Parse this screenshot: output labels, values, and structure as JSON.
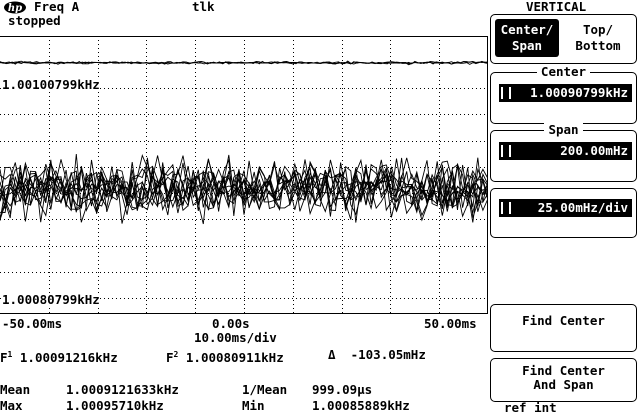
{
  "header": {
    "logo": "hp",
    "measurement": "Freq A",
    "status": "stopped",
    "remote": "tlk"
  },
  "screen": {
    "top_label": "1.00100799kHz",
    "bottom_label": "1.00080799kHz",
    "x_left": "-50.00ms",
    "x_center": "0.00s",
    "x_right": "50.00ms",
    "time_per_div": "10.00ms/div"
  },
  "markers": {
    "f1_label": "F",
    "f1_sub": "1",
    "f1_value": "1.00091216kHz",
    "f2_label": "F",
    "f2_sub": "2",
    "f2_value": "1.00080911kHz",
    "delta_symbol": "Δ",
    "delta_value": "-103.05mHz"
  },
  "stats": {
    "mean_label": "Mean",
    "mean_value": "1.0009121633kHz",
    "inv_mean_label": "1/Mean",
    "inv_mean_value": "999.09µs",
    "max_label": "Max",
    "max_value": "1.00095710kHz",
    "min_label": "Min",
    "min_value": "1.00085889kHz"
  },
  "menu": {
    "title": "VERTICAL",
    "center_span_line1": "Center/",
    "center_span_line2": "Span",
    "top_bottom_line1": "Top/",
    "top_bottom_line2": "Bottom",
    "center_title": "Center",
    "center_value": "1.00090799kHz",
    "span_title": "Span",
    "span_value": "200.00mHz",
    "scale_value": "25.00mHz/div",
    "find_center": "Find Center",
    "find_center_span_line1": "Find Center",
    "find_center_span_line2": "And Span",
    "ref": "ref int"
  },
  "chart_data": {
    "type": "line",
    "title": "",
    "xlabel": "10.00ms/div",
    "ylabel": "",
    "xlim": [
      -50,
      50
    ],
    "ylim": [
      1.00080799,
      1.00100799
    ],
    "x_unit": "ms",
    "y_unit": "kHz",
    "grid": true,
    "trace_count": 12,
    "trace_band_kHz": [
      1.00085889,
      1.0009571
    ],
    "traces_mean_kHz": 1.0009121633,
    "marker_line_kHz": 1.001032
  }
}
